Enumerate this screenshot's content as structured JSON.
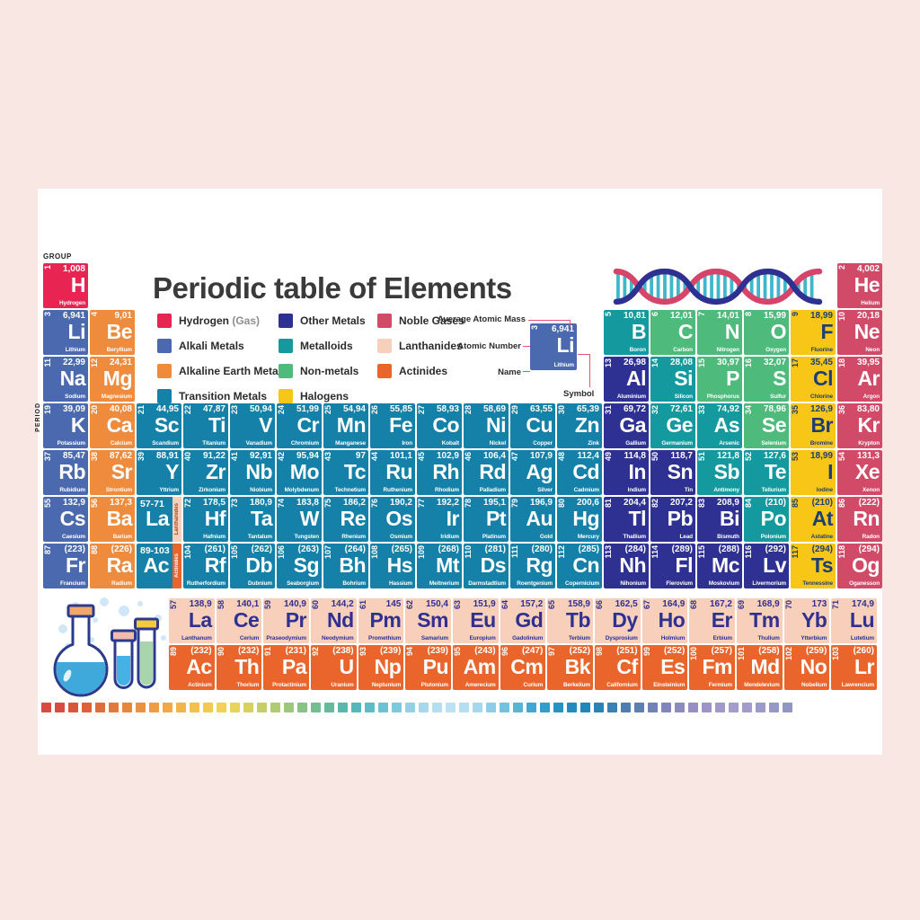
{
  "title": "Periodic table of Elements",
  "labels": {
    "group": "GROUP",
    "period": "PERIOD"
  },
  "colors": {
    "page_bg": "#f9e7e3",
    "poster_bg": "#ffffff",
    "title_text": "#3a3a3a",
    "annotation_line": "#e8526e",
    "dna_strand_a": "#d8436a",
    "dna_strand_b": "#2e3192",
    "dna_bar": "#3fb6c9"
  },
  "categories": {
    "h": {
      "bg": "#e82453",
      "fg": "#ffffff"
    },
    "alk": {
      "bg": "#4b69ae",
      "fg": "#ffffff"
    },
    "ae": {
      "bg": "#ef8b3d",
      "fg": "#ffffff"
    },
    "tm": {
      "bg": "#1580a8",
      "fg": "#ffffff"
    },
    "om": {
      "bg": "#2e3092",
      "fg": "#ffffff"
    },
    "md": {
      "bg": "#149a9e",
      "fg": "#ffffff"
    },
    "nm": {
      "bg": "#4eba7c",
      "fg": "#ffffff"
    },
    "hal": {
      "bg": "#f8c616",
      "fg": "#1c3e74"
    },
    "ng": {
      "bg": "#d14a68",
      "fg": "#ffffff"
    },
    "lan": {
      "bg": "#f7cfba",
      "fg": "#2e3092"
    },
    "act": {
      "bg": "#e9652b",
      "fg": "#ffffff"
    }
  },
  "legend": {
    "columns": [
      [
        {
          "cat": "h",
          "label": "Hydrogen",
          "suffix": " (Gas)"
        },
        {
          "cat": "alk",
          "label": "Alkali Metals"
        },
        {
          "cat": "ae",
          "label": "Alkaline Earth Metals"
        },
        {
          "cat": "tm",
          "label": "Transition Metals"
        }
      ],
      [
        {
          "cat": "om",
          "label": "Other Metals"
        },
        {
          "cat": "md",
          "label": "Metalloids"
        },
        {
          "cat": "nm",
          "label": "Non-metals"
        },
        {
          "cat": "hal",
          "label": "Halogens"
        }
      ],
      [
        {
          "cat": "ng",
          "label": "Noble Gases"
        },
        {
          "cat": "lan",
          "label": "Lanthanides"
        },
        {
          "cat": "act",
          "label": "Actinides"
        }
      ]
    ],
    "example": {
      "num": "3",
      "mass": "6,941",
      "sym": "Li",
      "name": "Lithium",
      "annotations": {
        "mass": "Average Atomic Mass",
        "number": "Atomic Number",
        "name": "Name",
        "symbol": "Symbol"
      }
    }
  },
  "periods": [
    [
      [
        "1",
        "1,008",
        "H",
        "Hydrogen",
        "h",
        1
      ],
      [
        "2",
        "4,002",
        "He",
        "Helium",
        "ng",
        18
      ]
    ],
    [
      [
        "3",
        "6,941",
        "Li",
        "Lithium",
        "alk",
        1
      ],
      [
        "4",
        "9,01",
        "Be",
        "Beryllium",
        "ae",
        2
      ],
      [
        "5",
        "10,81",
        "B",
        "Boron",
        "md",
        13
      ],
      [
        "6",
        "12,01",
        "C",
        "Carbon",
        "nm",
        14
      ],
      [
        "7",
        "14,01",
        "N",
        "Nitrogen",
        "nm",
        15
      ],
      [
        "8",
        "15,99",
        "O",
        "Oxygen",
        "nm",
        16
      ],
      [
        "9",
        "18,99",
        "F",
        "Fluorine",
        "hal",
        17
      ],
      [
        "10",
        "20,18",
        "Ne",
        "Neon",
        "ng",
        18
      ]
    ],
    [
      [
        "11",
        "22,99",
        "Na",
        "Sodium",
        "alk",
        1
      ],
      [
        "12",
        "24,31",
        "Mg",
        "Magnesium",
        "ae",
        2
      ],
      [
        "13",
        "26,98",
        "Al",
        "Aluminium",
        "om",
        13
      ],
      [
        "14",
        "28,08",
        "Si",
        "Silicon",
        "md",
        14
      ],
      [
        "15",
        "30,97",
        "P",
        "Phosphorus",
        "nm",
        15
      ],
      [
        "16",
        "32,07",
        "S",
        "Sulfur",
        "nm",
        16
      ],
      [
        "17",
        "35,45",
        "Cl",
        "Chlorine",
        "hal",
        17
      ],
      [
        "18",
        "39,95",
        "Ar",
        "Argon",
        "ng",
        18
      ]
    ],
    [
      [
        "19",
        "39,09",
        "K",
        "Potassium",
        "alk",
        1
      ],
      [
        "20",
        "40,08",
        "Ca",
        "Calcium",
        "ae",
        2
      ],
      [
        "21",
        "44,95",
        "Sc",
        "Scandium",
        "tm",
        3
      ],
      [
        "22",
        "47,87",
        "Ti",
        "Titanium",
        "tm",
        4
      ],
      [
        "23",
        "50,94",
        "V",
        "Vanadium",
        "tm",
        5
      ],
      [
        "24",
        "51,99",
        "Cr",
        "Chromium",
        "tm",
        6
      ],
      [
        "25",
        "54,94",
        "Mn",
        "Manganese",
        "tm",
        7
      ],
      [
        "26",
        "55,85",
        "Fe",
        "Iron",
        "tm",
        8
      ],
      [
        "27",
        "58,93",
        "Co",
        "Kobalt",
        "tm",
        9
      ],
      [
        "28",
        "58,69",
        "Ni",
        "Nickel",
        "tm",
        10
      ],
      [
        "29",
        "63,55",
        "Cu",
        "Copper",
        "tm",
        11
      ],
      [
        "30",
        "65,39",
        "Zn",
        "Zink",
        "tm",
        12
      ],
      [
        "31",
        "69,72",
        "Ga",
        "Gallium",
        "om",
        13
      ],
      [
        "32",
        "72,61",
        "Ge",
        "Germanium",
        "md",
        14
      ],
      [
        "33",
        "74,92",
        "As",
        "Arsenic",
        "md",
        15
      ],
      [
        "34",
        "78,96",
        "Se",
        "Selenium",
        "nm",
        16
      ],
      [
        "35",
        "126,9",
        "Br",
        "Bromine",
        "hal",
        17
      ],
      [
        "36",
        "83,80",
        "Kr",
        "Krypton",
        "ng",
        18
      ]
    ],
    [
      [
        "37",
        "85,47",
        "Rb",
        "Rubidium",
        "alk",
        1
      ],
      [
        "38",
        "87,62",
        "Sr",
        "Strontium",
        "ae",
        2
      ],
      [
        "39",
        "88,91",
        "Y",
        "Yttrium",
        "tm",
        3
      ],
      [
        "40",
        "91,22",
        "Zr",
        "Zirkonium",
        "tm",
        4
      ],
      [
        "41",
        "92,91",
        "Nb",
        "Niobium",
        "tm",
        5
      ],
      [
        "42",
        "95,94",
        "Mo",
        "Molybdenum",
        "tm",
        6
      ],
      [
        "43",
        "97",
        "Tc",
        "Technetium",
        "tm",
        7
      ],
      [
        "44",
        "101,1",
        "Ru",
        "Ruthenium",
        "tm",
        8
      ],
      [
        "45",
        "102,9",
        "Rh",
        "Rhodium",
        "tm",
        9
      ],
      [
        "46",
        "106,4",
        "Rd",
        "Palladium",
        "tm",
        10
      ],
      [
        "47",
        "107,9",
        "Ag",
        "Silver",
        "tm",
        11
      ],
      [
        "48",
        "112,4",
        "Cd",
        "Cadmium",
        "tm",
        12
      ],
      [
        "49",
        "114,8",
        "In",
        "Indium",
        "om",
        13
      ],
      [
        "50",
        "118,7",
        "Sn",
        "Tin",
        "om",
        14
      ],
      [
        "51",
        "121,8",
        "Sb",
        "Antimony",
        "md",
        15
      ],
      [
        "52",
        "127,6",
        "Te",
        "Tellurium",
        "md",
        16
      ],
      [
        "53",
        "18,99",
        "I",
        "Iodine",
        "hal",
        17
      ],
      [
        "54",
        "131,3",
        "Xe",
        "Xenon",
        "ng",
        18
      ]
    ],
    [
      [
        "55",
        "132,9",
        "Cs",
        "Caesium",
        "alk",
        1
      ],
      [
        "56",
        "137,3",
        "Ba",
        "Barium",
        "ae",
        2
      ],
      {
        "range": "57-71",
        "sym": "La",
        "tab": "Lanthanides",
        "cat": "tm",
        "tabcat": "lan",
        "col": 3
      },
      [
        "72",
        "178,5",
        "Hf",
        "Hafnium",
        "tm",
        4
      ],
      [
        "73",
        "180,9",
        "Ta",
        "Tantalum",
        "tm",
        5
      ],
      [
        "74",
        "183,8",
        "W",
        "Tungsten",
        "tm",
        6
      ],
      [
        "75",
        "186,2",
        "Re",
        "Rhenium",
        "tm",
        7
      ],
      [
        "76",
        "190,2",
        "Os",
        "Osmium",
        "tm",
        8
      ],
      [
        "77",
        "192,2",
        "Ir",
        "Iridium",
        "tm",
        9
      ],
      [
        "78",
        "195,1",
        "Pt",
        "Platinum",
        "tm",
        10
      ],
      [
        "79",
        "196,9",
        "Au",
        "Gold",
        "tm",
        11
      ],
      [
        "80",
        "200,6",
        "Hg",
        "Mercury",
        "tm",
        12
      ],
      [
        "81",
        "204,4",
        "Tl",
        "Thallium",
        "om",
        13
      ],
      [
        "82",
        "207,2",
        "Pb",
        "Lead",
        "om",
        14
      ],
      [
        "83",
        "208,9",
        "Bi",
        "Bismuth",
        "om",
        15
      ],
      [
        "84",
        "(210)",
        "Po",
        "Polonium",
        "md",
        16
      ],
      [
        "85",
        "(210)",
        "At",
        "Astatine",
        "hal",
        17
      ],
      [
        "86",
        "(222)",
        "Rn",
        "Radon",
        "ng",
        18
      ]
    ],
    [
      [
        "87",
        "(223)",
        "Fr",
        "Francium",
        "alk",
        1
      ],
      [
        "88",
        "(226)",
        "Ra",
        "Radium",
        "ae",
        2
      ],
      {
        "range": "89-103",
        "sym": "Ac",
        "tab": "Actinides",
        "cat": "tm",
        "tabcat": "act",
        "col": 3
      },
      [
        "104",
        "(261)",
        "Rf",
        "Rutherfordium",
        "tm",
        4
      ],
      [
        "105",
        "(262)",
        "Db",
        "Dubnium",
        "tm",
        5
      ],
      [
        "106",
        "(263)",
        "Sg",
        "Seaborgium",
        "tm",
        6
      ],
      [
        "107",
        "(264)",
        "Bh",
        "Bohrium",
        "tm",
        7
      ],
      [
        "108",
        "(265)",
        "Hs",
        "Hassium",
        "tm",
        8
      ],
      [
        "109",
        "(268)",
        "Mt",
        "Meitnerium",
        "tm",
        9
      ],
      [
        "110",
        "(281)",
        "Ds",
        "Darmstadtium",
        "tm",
        10
      ],
      [
        "111",
        "(280)",
        "Rg",
        "Roentgenium",
        "tm",
        11
      ],
      [
        "112",
        "(285)",
        "Cn",
        "Copernicium",
        "tm",
        12
      ],
      [
        "113",
        "(284)",
        "Nh",
        "Nihonium",
        "om",
        13
      ],
      [
        "114",
        "(289)",
        "Fl",
        "Flerovium",
        "om",
        14
      ],
      [
        "115",
        "(288)",
        "Mc",
        "Moskovium",
        "om",
        15
      ],
      [
        "116",
        "(292)",
        "Lv",
        "Livermorium",
        "om",
        16
      ],
      [
        "117",
        "(294)",
        "Ts",
        "Tennessine",
        "hal",
        17
      ],
      [
        "118",
        "(294)",
        "Og",
        "Oganesson",
        "ng",
        18
      ]
    ]
  ],
  "lanthanides": [
    [
      "57",
      "138,9",
      "La",
      "Lanthanum",
      "lan",
      1
    ],
    [
      "58",
      "140,1",
      "Ce",
      "Cerium",
      "lan",
      2
    ],
    [
      "59",
      "140,9",
      "Pr",
      "Praseodymium",
      "lan",
      3
    ],
    [
      "60",
      "144,2",
      "Nd",
      "Neodymium",
      "lan",
      4
    ],
    [
      "61",
      "145",
      "Pm",
      "Promethium",
      "lan",
      5
    ],
    [
      "62",
      "150,4",
      "Sm",
      "Samarium",
      "lan",
      6
    ],
    [
      "63",
      "151,9",
      "Eu",
      "Europium",
      "lan",
      7
    ],
    [
      "64",
      "157,2",
      "Gd",
      "Gadolinium",
      "lan",
      8
    ],
    [
      "65",
      "158,9",
      "Tb",
      "Terbium",
      "lan",
      9
    ],
    [
      "66",
      "162,5",
      "Dy",
      "Dysprosium",
      "lan",
      10
    ],
    [
      "67",
      "164,9",
      "Ho",
      "Holmium",
      "lan",
      11
    ],
    [
      "68",
      "167,2",
      "Er",
      "Erbium",
      "lan",
      12
    ],
    [
      "69",
      "168,9",
      "Tm",
      "Thulium",
      "lan",
      13
    ],
    [
      "70",
      "173",
      "Yb",
      "Ytterbium",
      "lan",
      14
    ],
    [
      "71",
      "174,9",
      "Lu",
      "Lutetium",
      "lan",
      15
    ]
  ],
  "actinides": [
    [
      "89",
      "(232)",
      "Ac",
      "Actinium",
      "act",
      1
    ],
    [
      "90",
      "(232)",
      "Th",
      "Thorium",
      "act",
      2
    ],
    [
      "91",
      "(231)",
      "Pa",
      "Protactinium",
      "act",
      3
    ],
    [
      "92",
      "(238)",
      "U",
      "Uranium",
      "act",
      4
    ],
    [
      "93",
      "(239)",
      "Np",
      "Neptunium",
      "act",
      5
    ],
    [
      "94",
      "(239)",
      "Pu",
      "Plutonium",
      "act",
      6
    ],
    [
      "95",
      "(243)",
      "Am",
      "Amerecium",
      "act",
      7
    ],
    [
      "96",
      "(247)",
      "Cm",
      "Curium",
      "act",
      8
    ],
    [
      "97",
      "(252)",
      "Bk",
      "Berkelium",
      "act",
      9
    ],
    [
      "98",
      "(251)",
      "Cf",
      "Californium",
      "act",
      10
    ],
    [
      "99",
      "(252)",
      "Es",
      "Einsteinium",
      "act",
      11
    ],
    [
      "100",
      "(257)",
      "Fm",
      "Fermium",
      "act",
      12
    ],
    [
      "101",
      "(258)",
      "Md",
      "Mendelevium",
      "act",
      13
    ],
    [
      "102",
      "(259)",
      "No",
      "Nobelium",
      "act",
      14
    ],
    [
      "103",
      "(260)",
      "Lr",
      "Lawrencium",
      "act",
      15
    ]
  ],
  "strip_colors": [
    "#d84a42",
    "#d84a42",
    "#da553f",
    "#dd613c",
    "#e06d3c",
    "#e4793c",
    "#e8853f",
    "#ec9142",
    "#ef9d45",
    "#f1a948",
    "#f2b54b",
    "#f3c04e",
    "#f3ca51",
    "#f2d254",
    "#e8d45b",
    "#d8d162",
    "#c5cf6a",
    "#b1cb72",
    "#9cc77c",
    "#88c287",
    "#76be92",
    "#66ba9e",
    "#5ab8ab",
    "#55b8b8",
    "#5dbcc6",
    "#6cc2d3",
    "#80c9dd",
    "#95d1e5",
    "#a7d8eb",
    "#b5deef",
    "#bce1f1",
    "#b5def0",
    "#a5d8ec",
    "#8ecde6",
    "#74c0de",
    "#5bb3d6",
    "#45a7cf",
    "#339cc8",
    "#2793c3",
    "#218cbe",
    "#2187ba",
    "#2a83b6",
    "#3a80b3",
    "#4d7fb2",
    "#5f80b3",
    "#7183b6",
    "#8086ba",
    "#8d8abe",
    "#978fc2",
    "#9f94c6",
    "#a399c8",
    "#a49cca",
    "#a19cc9",
    "#9c9ac7",
    "#9698c5",
    "#9197c3"
  ]
}
